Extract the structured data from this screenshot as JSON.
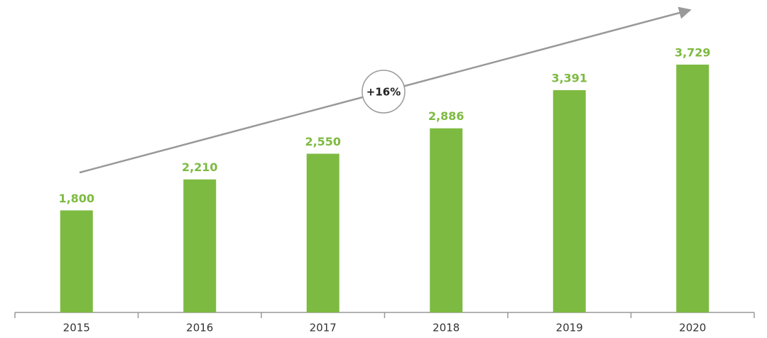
{
  "chart_data": {
    "type": "bar",
    "categories": [
      "2015",
      "2016",
      "2017",
      "2018",
      "2019",
      "2020"
    ],
    "values": [
      1800,
      2210,
      2550,
      2886,
      3391,
      3729
    ],
    "value_labels": [
      "1,800",
      "2,210",
      "2,550",
      "2,886",
      "3,391",
      "3,729"
    ],
    "color": "#7dba41",
    "annotation": "+16%"
  }
}
